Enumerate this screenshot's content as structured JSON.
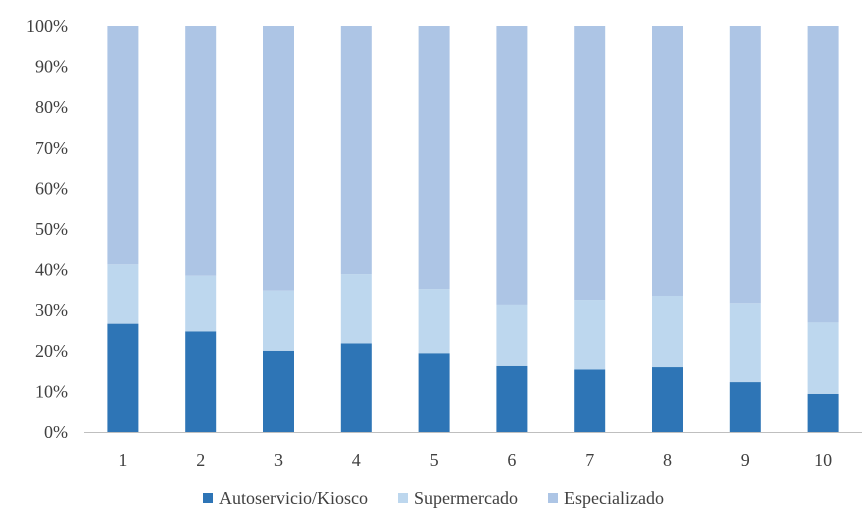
{
  "chart_data": {
    "type": "bar",
    "stacked": true,
    "percent": true,
    "categories": [
      "1",
      "2",
      "3",
      "4",
      "5",
      "6",
      "7",
      "8",
      "9",
      "10"
    ],
    "ylim": [
      0,
      100
    ],
    "yticks": [
      "0%",
      "10%",
      "20%",
      "30%",
      "40%",
      "50%",
      "60%",
      "70%",
      "80%",
      "90%",
      "100%"
    ],
    "series": [
      {
        "name": "Autoservicio/Kiosco",
        "color": "#2E75B6",
        "values": [
          26.7,
          24.8,
          20.0,
          21.8,
          19.4,
          16.3,
          15.4,
          16.0,
          12.3,
          9.4
        ]
      },
      {
        "name": "Supermercado",
        "color": "#BDD7EE",
        "values": [
          14.6,
          13.7,
          14.8,
          17.1,
          15.8,
          15.0,
          17.1,
          17.5,
          19.4,
          17.6
        ]
      },
      {
        "name": "Especializado",
        "color": "#ADC5E5",
        "values": [
          58.7,
          61.5,
          65.2,
          61.1,
          64.8,
          68.7,
          67.5,
          66.5,
          68.3,
          73.0
        ]
      }
    ],
    "legend_position": "bottom",
    "grid": false
  }
}
